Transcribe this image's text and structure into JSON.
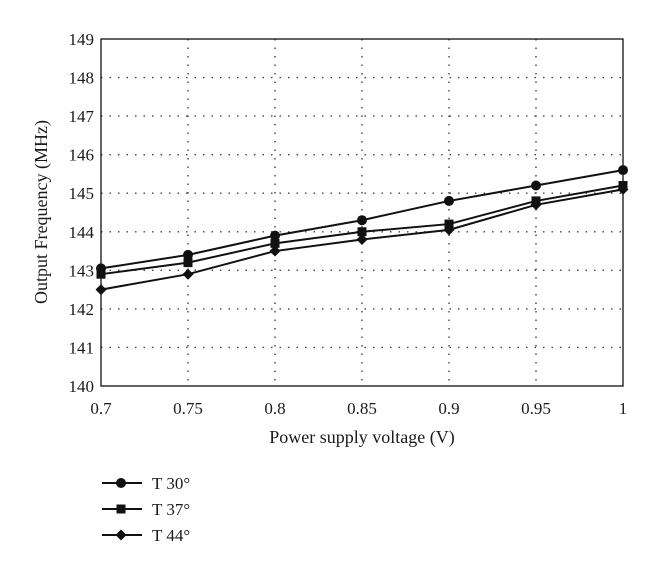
{
  "chart_data": {
    "type": "line",
    "xlabel": "Power supply voltage (V)",
    "ylabel": "Output Frequency (MHz)",
    "x": [
      0.7,
      0.75,
      0.8,
      0.85,
      0.9,
      0.95,
      1
    ],
    "x_tick_labels": [
      "0.7",
      "0.75",
      "0.8",
      "0.85",
      "0.9",
      "0.95",
      "1"
    ],
    "y_tick_labels": [
      "140",
      "141",
      "142",
      "143",
      "144",
      "145",
      "146",
      "147",
      "148",
      "149"
    ],
    "xlim": [
      0.7,
      1.0
    ],
    "ylim": [
      140,
      149
    ],
    "grid": true,
    "legend_position": "bottom-left",
    "series": [
      {
        "name": "T 30°",
        "marker": "circle",
        "values": [
          143.05,
          143.4,
          143.9,
          144.3,
          144.8,
          145.2,
          145.6
        ]
      },
      {
        "name": "T 37°",
        "marker": "square",
        "values": [
          142.9,
          143.2,
          143.7,
          144.0,
          144.2,
          144.8,
          145.2
        ]
      },
      {
        "name": "T 44°",
        "marker": "diamond",
        "values": [
          142.5,
          142.9,
          143.5,
          143.8,
          144.05,
          144.7,
          145.1
        ]
      }
    ]
  }
}
